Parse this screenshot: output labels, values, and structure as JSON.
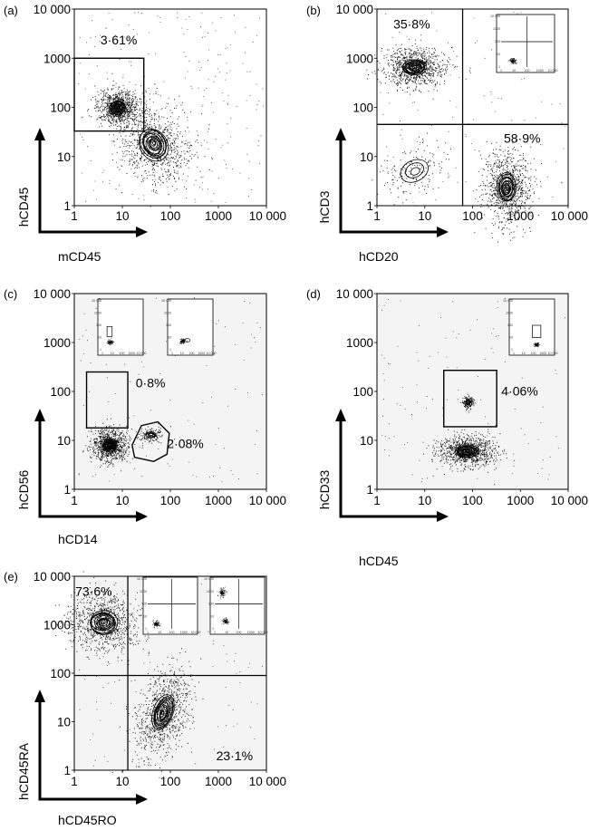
{
  "chart_data": [
    {
      "panel": "(a)",
      "type": "scatter",
      "xlabel": "mCD45",
      "ylabel": "hCD45",
      "xscale": "log",
      "yscale": "log",
      "xlim": [
        1,
        10000
      ],
      "ylim": [
        1,
        10000
      ],
      "tick_values": [
        1,
        10,
        100,
        1000,
        10000
      ],
      "tick_labels": [
        "1",
        "10",
        "100",
        "1000",
        "10 000"
      ],
      "gates": [
        {
          "shape": "rect",
          "x": [
            1,
            28
          ],
          "y": [
            33,
            1000
          ],
          "label": "3·61%",
          "label_at": [
            3.5,
            1900
          ]
        }
      ],
      "populations": [
        {
          "center": [
            8,
            100
          ],
          "spread": [
            0.17,
            0.14
          ],
          "tilt": 0.0,
          "density": "high"
        },
        {
          "center": [
            45,
            18
          ],
          "spread": [
            0.28,
            0.35
          ],
          "tilt": 0.6,
          "density": "high"
        }
      ],
      "insets": []
    },
    {
      "panel": "(b)",
      "type": "scatter",
      "xlabel": "hCD20",
      "ylabel": "hCD3",
      "xscale": "log",
      "yscale": "log",
      "xlim": [
        1,
        10000
      ],
      "ylim": [
        1,
        10000
      ],
      "tick_values": [
        1,
        10,
        100,
        1000,
        10000
      ],
      "tick_labels": [
        "1",
        "10",
        "100",
        "1000",
        "10 000"
      ],
      "gates": [
        {
          "shape": "quadrant",
          "x": 62,
          "y": 45
        }
      ],
      "labels": [
        {
          "text": "35·8%",
          "at": [
            2.2,
            4000
          ]
        },
        {
          "text": "58·9%",
          "at": [
            450,
            19
          ]
        }
      ],
      "populations": [
        {
          "center": [
            6,
            650
          ],
          "spread": [
            0.26,
            0.16
          ],
          "tilt": 0.0,
          "density": "high"
        },
        {
          "center": [
            520,
            2.3
          ],
          "spread": [
            0.2,
            0.3
          ],
          "tilt": 0.0,
          "density": "high"
        },
        {
          "center": [
            6,
            5
          ],
          "spread": [
            0.3,
            0.22
          ],
          "tilt": 0.5,
          "density": "low"
        }
      ],
      "insets": [
        {
          "gates": [
            {
              "shape": "quadrant",
              "x": 100,
              "y": 100
            }
          ],
          "populations": [
            {
              "center": [
                8,
                3
              ],
              "spread": [
                0.1,
                0.08
              ]
            }
          ]
        }
      ]
    },
    {
      "panel": "(c)",
      "type": "scatter",
      "xlabel": "hCD14",
      "ylabel": "hCD56",
      "xscale": "log",
      "yscale": "log",
      "xlim": [
        1,
        10000
      ],
      "ylim": [
        1,
        10000
      ],
      "tick_values": [
        1,
        10,
        100,
        1000,
        10000
      ],
      "tick_labels": [
        "1",
        "10",
        "100",
        "1000",
        "10 000"
      ],
      "gates": [
        {
          "shape": "rect",
          "x": [
            1.8,
            13
          ],
          "y": [
            18,
            250
          ],
          "label": "0·8%",
          "label_at": [
            19,
            120
          ]
        },
        {
          "shape": "polygon",
          "points": [
            [
              16,
              8
            ],
            [
              25,
              20
            ],
            [
              55,
              24
            ],
            [
              95,
              14
            ],
            [
              85,
              5.2
            ],
            [
              45,
              3.7
            ],
            [
              18,
              4.5
            ]
          ],
          "label": "2·08%",
          "label_at": [
            85,
            7
          ]
        }
      ],
      "populations": [
        {
          "center": [
            5.5,
            8
          ],
          "spread": [
            0.15,
            0.13
          ],
          "tilt": 0.0,
          "density": "high"
        },
        {
          "center": [
            40,
            13
          ],
          "spread": [
            0.1,
            0.06
          ],
          "tilt": 0.0,
          "density": "low"
        }
      ],
      "insets": [
        {
          "gates": [
            {
              "shape": "rect",
              "x": [
                3,
                10
              ],
              "y": [
                12,
                80
              ]
            }
          ],
          "populations": [
            {
              "center": [
                6,
                4
              ],
              "spread": [
                0.12,
                0.1
              ]
            }
          ]
        },
        {
          "gates": [
            {
              "shape": "ellipse",
              "center": [
                35,
                6
              ],
              "r": [
                0.3,
                0.18
              ]
            }
          ],
          "populations": [
            {
              "center": [
                12,
                5
              ],
              "spread": [
                0.12,
                0.1
              ]
            }
          ]
        }
      ]
    },
    {
      "panel": "(d)",
      "type": "scatter",
      "xlabel": "hCD45",
      "ylabel": "hCD33",
      "xscale": "log",
      "yscale": "log",
      "xlim": [
        1,
        10000
      ],
      "ylim": [
        1,
        10000
      ],
      "tick_values": [
        1,
        10,
        100,
        1000,
        10000
      ],
      "tick_labels": [
        "1",
        "10",
        "100",
        "1000",
        "10 000"
      ],
      "gates": [
        {
          "shape": "rect",
          "x": [
            25,
            320
          ],
          "y": [
            19,
            270
          ],
          "label": "4·06%",
          "label_at": [
            400,
            82
          ]
        }
      ],
      "populations": [
        {
          "center": [
            75,
            6
          ],
          "spread": [
            0.24,
            0.13
          ],
          "tilt": 0.0,
          "density": "high"
        },
        {
          "center": [
            80,
            60
          ],
          "spread": [
            0.05,
            0.05
          ],
          "tilt": 0.0,
          "density": "low"
        }
      ],
      "insets": [
        {
          "gates": [
            {
              "shape": "rect",
              "x": [
                80,
                600
              ],
              "y": [
                10,
                100
              ]
            }
          ],
          "populations": [
            {
              "center": [
                200,
                2.5
              ],
              "spread": [
                0.1,
                0.08
              ]
            }
          ]
        }
      ]
    },
    {
      "panel": "(e)",
      "type": "scatter",
      "xlabel": "hCD45RO",
      "ylabel": "hCD45RA",
      "xscale": "log",
      "yscale": "log",
      "xlim": [
        1,
        10000
      ],
      "ylim": [
        1,
        10000
      ],
      "tick_values": [
        1,
        10,
        100,
        1000,
        10000
      ],
      "tick_labels": [
        "1",
        "10",
        "100",
        "1000",
        "10 000"
      ],
      "gates": [
        {
          "shape": "quadrant",
          "x": 13,
          "y": 90
        }
      ],
      "labels": [
        {
          "text": "73·6%",
          "at": [
            1.05,
            4000
          ]
        },
        {
          "text": "23·1%",
          "at": [
            900,
            1.6
          ]
        }
      ],
      "populations": [
        {
          "center": [
            4,
            1100
          ],
          "spread": [
            0.3,
            0.25
          ],
          "tilt": 0.0,
          "density": "high"
        },
        {
          "center": [
            70,
            15
          ],
          "spread": [
            0.2,
            0.38
          ],
          "tilt": -0.35,
          "density": "high"
        }
      ],
      "insets": [
        {
          "gates": [
            {
              "shape": "quadrant",
              "x": 100,
              "y": 100
            }
          ],
          "populations": [
            {
              "center": [
                5,
                2.5
              ],
              "spread": [
                0.12,
                0.1
              ]
            }
          ]
        },
        {
          "gates": [
            {
              "shape": "quadrant",
              "x": 100,
              "y": 100
            }
          ],
          "populations": [
            {
              "center": [
                4,
                800
              ],
              "spread": [
                0.12,
                0.16
              ]
            },
            {
              "center": [
                8,
                4
              ],
              "spread": [
                0.12,
                0.1
              ]
            }
          ]
        }
      ]
    }
  ]
}
